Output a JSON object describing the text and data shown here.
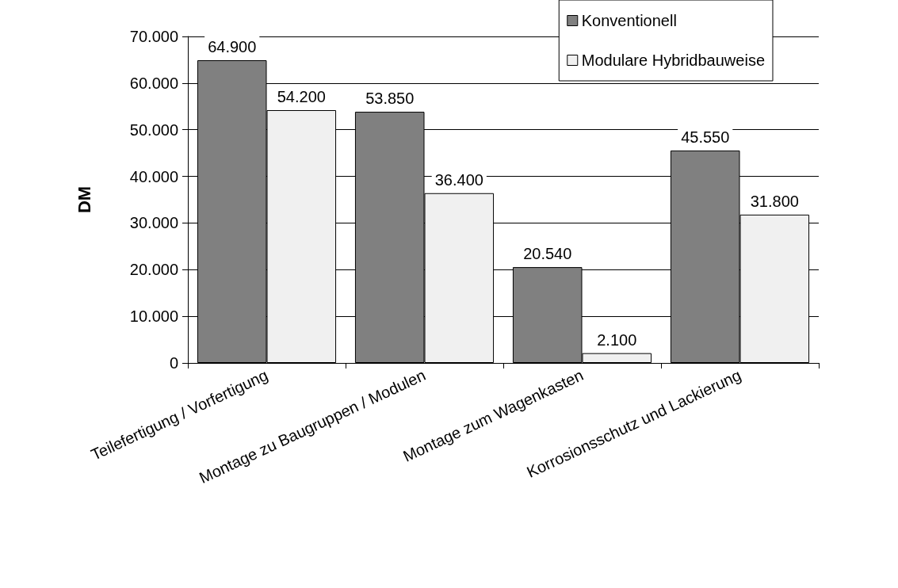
{
  "chart_data": {
    "type": "bar",
    "ylabel": "DM",
    "categories": [
      "Teilefertigung / Vorfertigung",
      "Montage zu Baugruppen / Modulen",
      "Montage zum Wagenkasten",
      "Korrosionsschutz und Lackierung"
    ],
    "series": [
      {
        "name": "Konventionell",
        "color": "#808080",
        "values": [
          64900,
          53850,
          20540,
          45550
        ],
        "value_labels": [
          "64.900",
          "53.850",
          "20.540",
          "45.550"
        ]
      },
      {
        "name": "Modulare Hybridbauweise",
        "color": "#f0f0f0",
        "values": [
          54200,
          36400,
          2100,
          31800
        ],
        "value_labels": [
          "54.200",
          "36.400",
          "2.100",
          "31.800"
        ]
      }
    ],
    "ylim": [
      0,
      70000
    ],
    "yticks": [
      0,
      {
        "value": 10000,
        "label": "10.000"
      },
      {
        "value": 20000,
        "label": "20.000"
      },
      {
        "value": 30000,
        "label": "30.000"
      },
      {
        "value": 40000,
        "label": "40.000"
      },
      {
        "value": 50000,
        "label": "50.000"
      },
      {
        "value": 60000,
        "label": "60.000"
      },
      {
        "value": 70000,
        "label": "70.000"
      }
    ],
    "grid": "y",
    "legend": "top right"
  }
}
